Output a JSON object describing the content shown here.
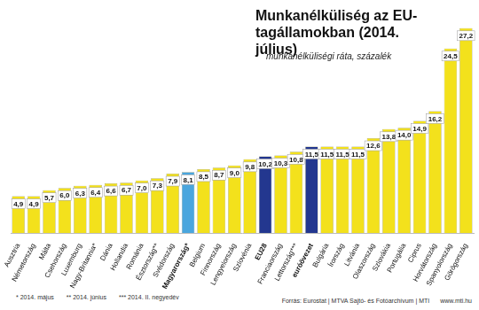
{
  "chart_data": {
    "type": "bar",
    "title": "Munkanélküliség az EU-tagállamokban (2014. július)",
    "subtitle": "munkanélküliségi ráta, százalék",
    "categories": [
      "Ausztria",
      "Németország",
      "Málta",
      "Csehország",
      "Luxemburg",
      "Nagy-Britannia*",
      "Dánia",
      "Hollandia",
      "Románia",
      "Észtország**",
      "Svédország",
      "Magyarország*",
      "Belgium",
      "Finnország",
      "Lengyelország",
      "Szlovénia",
      "EU28",
      "Franciaország",
      "Lettország***",
      "euróövezet",
      "Bulgária",
      "Írország",
      "Litvánia",
      "Olaszország",
      "Szlovákia",
      "Portugália",
      "Ciprus",
      "Horvátország",
      "Spanyolország",
      "Görögország"
    ],
    "values": [
      4.9,
      4.9,
      5.7,
      6.0,
      6.3,
      6.4,
      6.6,
      6.7,
      7.0,
      7.3,
      7.9,
      8.1,
      8.5,
      8.7,
      9.0,
      9.8,
      10.2,
      10.3,
      10.8,
      11.5,
      11.5,
      11.5,
      11.5,
      12.6,
      13.8,
      14.0,
      14.9,
      16.2,
      24.5,
      27.2
    ],
    "value_labels": [
      "4,9",
      "4,9",
      "5,7",
      "6,0",
      "6,3",
      "6,4",
      "6,6",
      "6,7",
      "7,0",
      "7,3",
      "7,9",
      "8,1",
      "8,5",
      "8,7",
      "9,0",
      "9,8",
      "10,2",
      "10,3",
      "10,8",
      "11,5",
      "11,5",
      "11,5",
      "11,5",
      "12,6",
      "13,8",
      "14,0",
      "14,9",
      "16,2",
      "24,5",
      "27,2"
    ],
    "colors": [
      "#f3e11c",
      "#f3e11c",
      "#f3e11c",
      "#f3e11c",
      "#f3e11c",
      "#f3e11c",
      "#f3e11c",
      "#f3e11c",
      "#f3e11c",
      "#f3e11c",
      "#f3e11c",
      "#4aa6de",
      "#f3e11c",
      "#f3e11c",
      "#f3e11c",
      "#f3e11c",
      "#23378f",
      "#f3e11c",
      "#f3e11c",
      "#23378f",
      "#f3e11c",
      "#f3e11c",
      "#f3e11c",
      "#f3e11c",
      "#f3e11c",
      "#f3e11c",
      "#f3e11c",
      "#f3e11c",
      "#f3e11c",
      "#f3e11c"
    ],
    "ylim": [
      0,
      30
    ],
    "data_labels": true,
    "tick_labels": "x",
    "grid": false,
    "footnotes": [
      "* 2014. május",
      "** 2014. június",
      "*** 2014. II. negyedév"
    ],
    "source": [
      "Forrás: Eurostat | MTVA Sajtó- és Fotóarchívum | MTI",
      "www.mti.hu"
    ]
  }
}
